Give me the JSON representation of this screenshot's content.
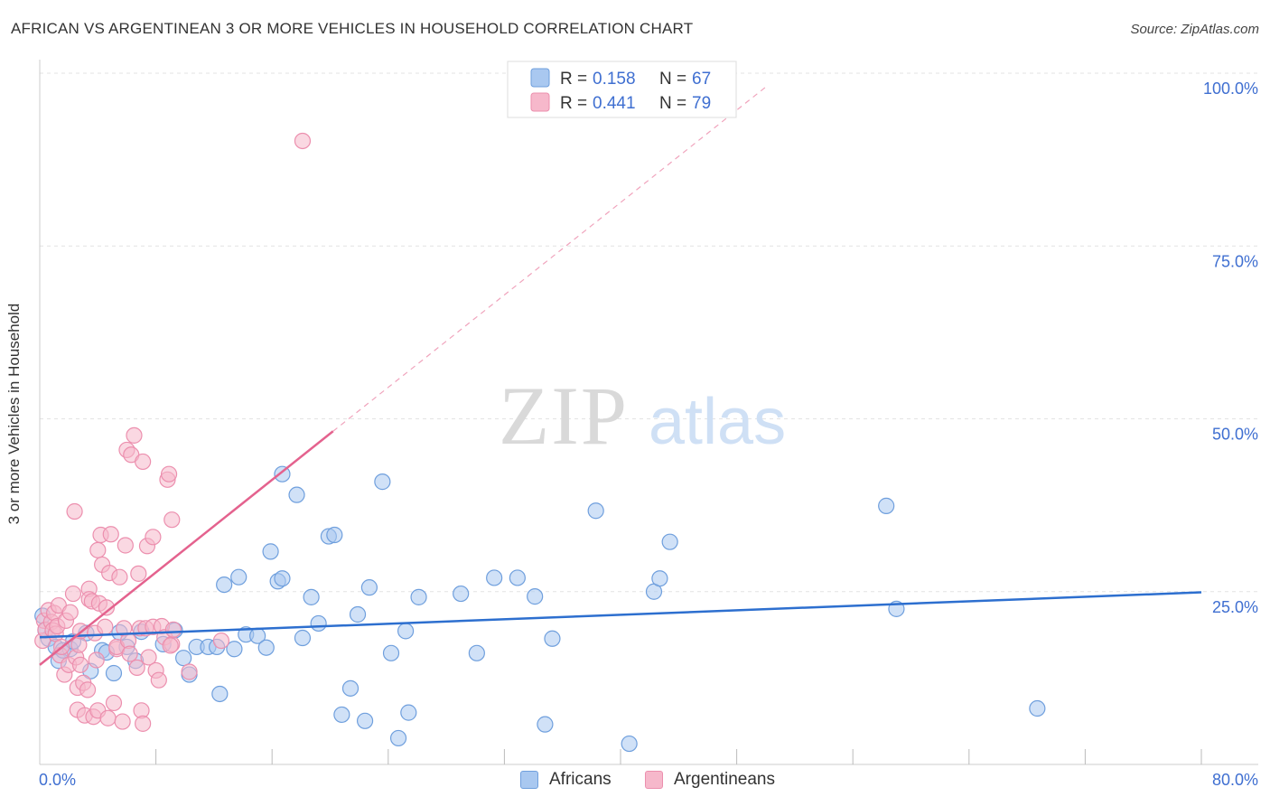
{
  "title": "AFRICAN VS ARGENTINEAN 3 OR MORE VEHICLES IN HOUSEHOLD CORRELATION CHART",
  "source": "Source: ZipAtlas.com",
  "watermark": {
    "zip": "ZIP",
    "atlas": "atlas"
  },
  "colors": {
    "africans_fill": "#a9c8f0",
    "africans_stroke": "#6f9fdd",
    "africans_line": "#2d6fcf",
    "argentineans_fill": "#f6b8cb",
    "argentineans_stroke": "#ec8fae",
    "argentineans_line": "#e4628e",
    "axis_text": "#3f6fd1"
  },
  "legend": {
    "rows": [
      {
        "r_label": "R =",
        "r_value": "0.158",
        "n_label": "N =",
        "n_value": "67"
      },
      {
        "r_label": "R =",
        "r_value": "0.441",
        "n_label": "N =",
        "n_value": "79"
      }
    ]
  },
  "bottom_legend": [
    "Africans",
    "Argentineans"
  ],
  "chart_data": {
    "type": "scatter",
    "title": "AFRICAN VS ARGENTINEAN 3 OR MORE VEHICLES IN HOUSEHOLD CORRELATION CHART",
    "xlabel": "",
    "ylabel": "3 or more Vehicles in Household",
    "xlim": [
      0,
      80
    ],
    "ylim": [
      0,
      100
    ],
    "x_tick_labels": [
      "0.0%",
      "80.0%"
    ],
    "y_tick_labels": [
      "25.0%",
      "50.0%",
      "75.0%",
      "100.0%"
    ],
    "y_ticks": [
      25,
      50,
      75,
      100
    ],
    "x_minor_ticks": [
      8,
      16,
      24,
      32,
      40,
      48,
      56,
      64,
      72,
      80
    ],
    "grid": true,
    "series": [
      {
        "name": "Africans",
        "trend": {
          "x": [
            0,
            80
          ],
          "y": [
            18.4,
            24.9
          ]
        },
        "points": [
          [
            0.2,
            21.5
          ],
          [
            0.6,
            18.2
          ],
          [
            1.1,
            17.0
          ],
          [
            1.3,
            15.0
          ],
          [
            1.6,
            16.5
          ],
          [
            2.1,
            16.7
          ],
          [
            2.3,
            17.8
          ],
          [
            3.2,
            19.0
          ],
          [
            3.5,
            13.5
          ],
          [
            4.3,
            16.5
          ],
          [
            4.6,
            16.2
          ],
          [
            5.1,
            13.2
          ],
          [
            5.5,
            19.1
          ],
          [
            6.0,
            17.0
          ],
          [
            6.6,
            15.0
          ],
          [
            7.0,
            19.2
          ],
          [
            8.5,
            17.4
          ],
          [
            9.3,
            19.4
          ],
          [
            9.9,
            15.4
          ],
          [
            10.3,
            13.0
          ],
          [
            10.8,
            17.0
          ],
          [
            11.6,
            17.0
          ],
          [
            12.2,
            17.0
          ],
          [
            12.4,
            10.2
          ],
          [
            12.7,
            26.0
          ],
          [
            13.4,
            16.7
          ],
          [
            13.7,
            27.1
          ],
          [
            14.2,
            18.8
          ],
          [
            15.0,
            18.6
          ],
          [
            15.6,
            16.9
          ],
          [
            15.9,
            30.8
          ],
          [
            16.4,
            26.5
          ],
          [
            16.7,
            26.9
          ],
          [
            16.7,
            42.0
          ],
          [
            17.7,
            39.0
          ],
          [
            18.1,
            18.3
          ],
          [
            18.7,
            24.2
          ],
          [
            19.2,
            20.4
          ],
          [
            19.9,
            33.0
          ],
          [
            20.3,
            33.2
          ],
          [
            20.8,
            7.2
          ],
          [
            21.4,
            11.0
          ],
          [
            21.9,
            21.7
          ],
          [
            22.4,
            6.3
          ],
          [
            22.7,
            25.6
          ],
          [
            23.6,
            40.9
          ],
          [
            24.2,
            16.1
          ],
          [
            24.7,
            3.8
          ],
          [
            25.2,
            19.3
          ],
          [
            25.4,
            7.5
          ],
          [
            26.1,
            24.2
          ],
          [
            29.0,
            24.7
          ],
          [
            30.1,
            16.1
          ],
          [
            31.3,
            27.0
          ],
          [
            32.9,
            27.0
          ],
          [
            34.1,
            24.3
          ],
          [
            34.8,
            5.8
          ],
          [
            35.3,
            18.2
          ],
          [
            38.3,
            36.7
          ],
          [
            40.6,
            3.0
          ],
          [
            42.3,
            25.0
          ],
          [
            42.7,
            26.9
          ],
          [
            43.4,
            32.2
          ],
          [
            58.3,
            37.4
          ],
          [
            59.0,
            22.5
          ],
          [
            68.7,
            8.1
          ],
          [
            0.4,
            19.4
          ]
        ]
      },
      {
        "name": "Argentineans",
        "trend": {
          "x": [
            0,
            20.2
          ],
          "y": [
            14.4,
            48.2
          ]
        },
        "trend_dashed": {
          "x": [
            20.2,
            50
          ],
          "y": [
            48.2,
            98.0
          ]
        },
        "points": [
          [
            0.2,
            17.9
          ],
          [
            0.3,
            20.8
          ],
          [
            0.4,
            19.5
          ],
          [
            0.6,
            22.3
          ],
          [
            0.8,
            20.6
          ],
          [
            0.9,
            19.4
          ],
          [
            1.0,
            21.9
          ],
          [
            1.1,
            18.9
          ],
          [
            1.2,
            20.0
          ],
          [
            1.3,
            23.0
          ],
          [
            1.4,
            15.8
          ],
          [
            1.5,
            17.0
          ],
          [
            1.7,
            13.0
          ],
          [
            1.8,
            20.8
          ],
          [
            2.0,
            14.4
          ],
          [
            2.1,
            22.0
          ],
          [
            2.3,
            24.7
          ],
          [
            2.5,
            15.5
          ],
          [
            2.4,
            36.6
          ],
          [
            2.6,
            11.1
          ],
          [
            2.6,
            7.9
          ],
          [
            2.7,
            17.3
          ],
          [
            2.8,
            14.4
          ],
          [
            2.8,
            19.3
          ],
          [
            3.0,
            11.8
          ],
          [
            3.1,
            7.1
          ],
          [
            3.3,
            10.8
          ],
          [
            3.4,
            25.4
          ],
          [
            3.4,
            23.9
          ],
          [
            3.6,
            23.6
          ],
          [
            3.7,
            6.9
          ],
          [
            3.8,
            19.0
          ],
          [
            3.9,
            15.1
          ],
          [
            4.0,
            7.8
          ],
          [
            4.1,
            23.3
          ],
          [
            4.0,
            31.0
          ],
          [
            4.2,
            33.2
          ],
          [
            4.3,
            28.9
          ],
          [
            4.5,
            19.9
          ],
          [
            4.6,
            22.7
          ],
          [
            4.7,
            6.7
          ],
          [
            4.8,
            27.7
          ],
          [
            4.9,
            33.3
          ],
          [
            5.1,
            8.9
          ],
          [
            5.3,
            16.7
          ],
          [
            5.3,
            17.0
          ],
          [
            5.5,
            27.1
          ],
          [
            5.7,
            6.2
          ],
          [
            5.8,
            19.7
          ],
          [
            5.9,
            31.7
          ],
          [
            6.0,
            45.5
          ],
          [
            6.1,
            17.9
          ],
          [
            6.2,
            16.0
          ],
          [
            6.3,
            44.8
          ],
          [
            6.5,
            47.6
          ],
          [
            6.7,
            14.0
          ],
          [
            6.8,
            27.6
          ],
          [
            6.9,
            19.7
          ],
          [
            7.0,
            7.8
          ],
          [
            7.1,
            5.9
          ],
          [
            7.1,
            43.8
          ],
          [
            7.3,
            19.7
          ],
          [
            7.4,
            31.6
          ],
          [
            7.5,
            15.5
          ],
          [
            7.8,
            19.9
          ],
          [
            7.8,
            32.9
          ],
          [
            8.0,
            13.6
          ],
          [
            8.2,
            12.2
          ],
          [
            8.4,
            20.0
          ],
          [
            8.6,
            18.4
          ],
          [
            8.8,
            41.2
          ],
          [
            8.9,
            42.0
          ],
          [
            9.1,
            17.4
          ],
          [
            9.2,
            19.5
          ],
          [
            9.0,
            17.2
          ],
          [
            9.1,
            35.4
          ],
          [
            10.3,
            13.4
          ],
          [
            12.5,
            17.9
          ],
          [
            18.1,
            90.2
          ]
        ]
      }
    ]
  }
}
